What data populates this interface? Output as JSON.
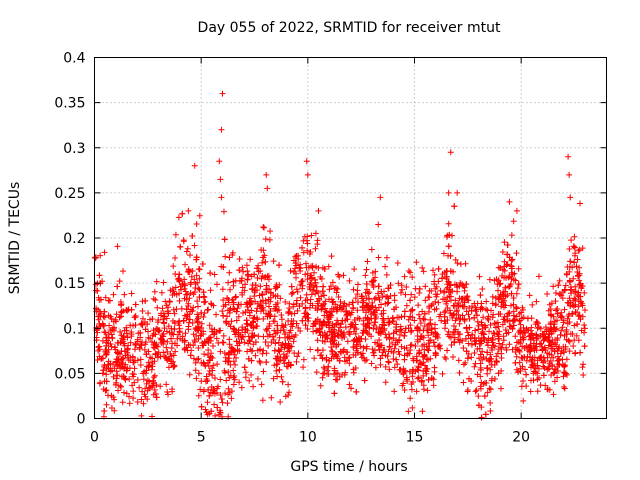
{
  "chart_data": {
    "type": "scatter",
    "title": "Day 055 of 2022, SRMTID for receiver mtut",
    "xlabel": "GPS time / hours",
    "ylabel": "SRMTID / TECUs",
    "xlim": [
      0,
      24
    ],
    "ylim": [
      0,
      0.4
    ],
    "x_ticks": [
      0,
      5,
      10,
      15,
      20
    ],
    "y_ticks": [
      0,
      0.05,
      0.1,
      0.15,
      0.2,
      0.25,
      0.3,
      0.35,
      0.4
    ],
    "x_tick_labels": [
      "0",
      "5",
      "10",
      "15",
      "20"
    ],
    "y_tick_labels": [
      "0",
      "0.05",
      "0.1",
      "0.15",
      "0.2",
      "0.25",
      "0.3",
      "0.35",
      "0.4"
    ],
    "grid": true,
    "marker": "+",
    "color": "#ff0000",
    "envelope": [
      {
        "x": 0.0,
        "y": 0.14,
        "spread": 0.04
      },
      {
        "x": 0.5,
        "y": 0.07,
        "spread": 0.045
      },
      {
        "x": 1.0,
        "y": 0.075,
        "spread": 0.045
      },
      {
        "x": 1.5,
        "y": 0.08,
        "spread": 0.045
      },
      {
        "x": 2.0,
        "y": 0.075,
        "spread": 0.045
      },
      {
        "x": 2.5,
        "y": 0.065,
        "spread": 0.045
      },
      {
        "x": 3.0,
        "y": 0.075,
        "spread": 0.045
      },
      {
        "x": 3.5,
        "y": 0.1,
        "spread": 0.05
      },
      {
        "x": 4.0,
        "y": 0.14,
        "spread": 0.05
      },
      {
        "x": 4.5,
        "y": 0.13,
        "spread": 0.06
      },
      {
        "x": 5.0,
        "y": 0.1,
        "spread": 0.07
      },
      {
        "x": 5.5,
        "y": 0.06,
        "spread": 0.06
      },
      {
        "x": 6.0,
        "y": 0.08,
        "spread": 0.07
      },
      {
        "x": 6.5,
        "y": 0.1,
        "spread": 0.06
      },
      {
        "x": 7.0,
        "y": 0.11,
        "spread": 0.05
      },
      {
        "x": 7.5,
        "y": 0.11,
        "spread": 0.05
      },
      {
        "x": 8.0,
        "y": 0.13,
        "spread": 0.055
      },
      {
        "x": 8.5,
        "y": 0.1,
        "spread": 0.05
      },
      {
        "x": 9.0,
        "y": 0.08,
        "spread": 0.04
      },
      {
        "x": 9.5,
        "y": 0.13,
        "spread": 0.05
      },
      {
        "x": 10.0,
        "y": 0.15,
        "spread": 0.05
      },
      {
        "x": 10.5,
        "y": 0.12,
        "spread": 0.045
      },
      {
        "x": 11.0,
        "y": 0.1,
        "spread": 0.04
      },
      {
        "x": 12.0,
        "y": 0.09,
        "spread": 0.04
      },
      {
        "x": 13.0,
        "y": 0.11,
        "spread": 0.04
      },
      {
        "x": 14.0,
        "y": 0.1,
        "spread": 0.045
      },
      {
        "x": 15.0,
        "y": 0.08,
        "spread": 0.05
      },
      {
        "x": 16.0,
        "y": 0.1,
        "spread": 0.05
      },
      {
        "x": 16.5,
        "y": 0.14,
        "spread": 0.05
      },
      {
        "x": 17.0,
        "y": 0.11,
        "spread": 0.045
      },
      {
        "x": 18.0,
        "y": 0.09,
        "spread": 0.05
      },
      {
        "x": 18.5,
        "y": 0.06,
        "spread": 0.05
      },
      {
        "x": 19.0,
        "y": 0.11,
        "spread": 0.05
      },
      {
        "x": 19.5,
        "y": 0.15,
        "spread": 0.05
      },
      {
        "x": 20.0,
        "y": 0.085,
        "spread": 0.035
      },
      {
        "x": 21.0,
        "y": 0.075,
        "spread": 0.035
      },
      {
        "x": 22.0,
        "y": 0.1,
        "spread": 0.045
      },
      {
        "x": 22.5,
        "y": 0.15,
        "spread": 0.05
      },
      {
        "x": 23.0,
        "y": 0.1,
        "spread": 0.05
      }
    ],
    "outliers": [
      [
        6.0,
        0.36
      ],
      [
        5.95,
        0.32
      ],
      [
        5.85,
        0.285
      ],
      [
        5.9,
        0.265
      ],
      [
        4.7,
        0.28
      ],
      [
        9.95,
        0.285
      ],
      [
        10.0,
        0.27
      ],
      [
        16.7,
        0.295
      ],
      [
        22.2,
        0.29
      ],
      [
        22.25,
        0.27
      ],
      [
        8.05,
        0.27
      ],
      [
        8.1,
        0.255
      ],
      [
        13.4,
        0.245
      ],
      [
        19.45,
        0.24
      ],
      [
        4.4,
        0.23
      ],
      [
        5.95,
        0.245
      ],
      [
        10.5,
        0.23
      ],
      [
        16.6,
        0.25
      ],
      [
        17.0,
        0.25
      ],
      [
        22.3,
        0.245
      ],
      [
        19.8,
        0.23
      ],
      [
        13.3,
        0.215
      ]
    ],
    "count": 3200
  }
}
